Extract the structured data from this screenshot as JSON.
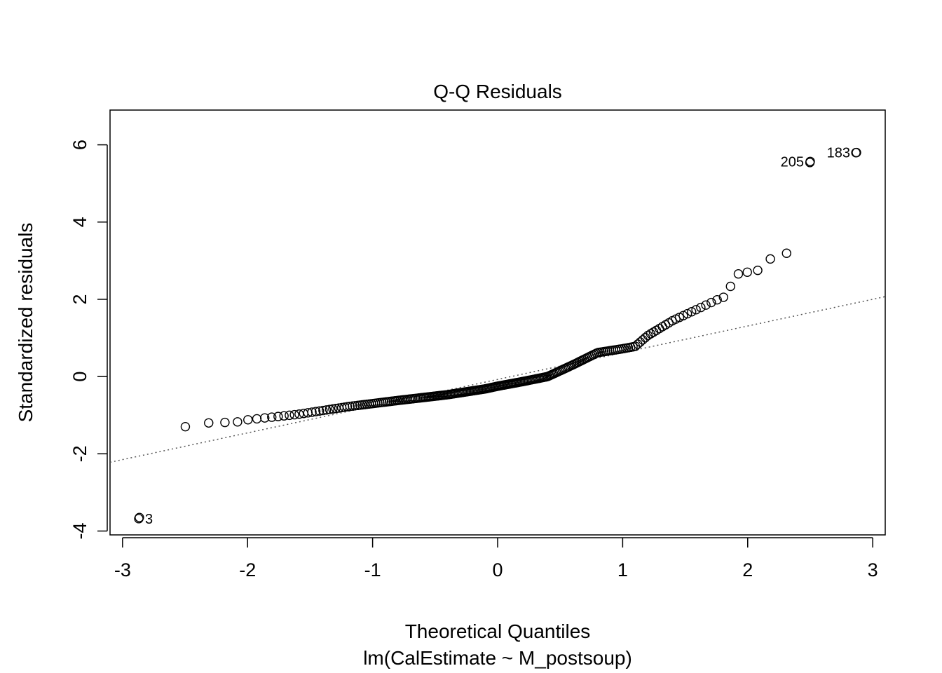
{
  "chart_data": {
    "type": "scatter",
    "title": "Q-Q Residuals",
    "xlabel": "Theoretical Quantiles",
    "sublabel": "lm(CalEstimate ~ M_postsoup)",
    "ylabel": "Standardized residuals",
    "xlim": [
      -3.1,
      3.1
    ],
    "ylim": [
      -4.1,
      6.9
    ],
    "x_ticks": [
      -3,
      -2,
      -1,
      0,
      1,
      2,
      3
    ],
    "y_ticks": [
      -4,
      -2,
      0,
      2,
      4,
      6
    ],
    "x_tick_labels": [
      "-3",
      "-2",
      "-1",
      "0",
      "1",
      "2",
      "3"
    ],
    "y_tick_labels": [
      "-4",
      "-2",
      "0",
      "2",
      "4",
      "6"
    ],
    "reference_line": {
      "points": [
        [
          -3.1,
          -2.22
        ],
        [
          3.1,
          2.07
        ]
      ],
      "style": "dotted"
    },
    "n_points": 240,
    "key_points": [
      [
        -2.87,
        -3.68
      ],
      [
        -2.5,
        -1.3
      ],
      [
        -2.31,
        -1.2
      ],
      [
        -2.2,
        -1.19
      ],
      [
        -2.09,
        -1.18
      ],
      [
        -2.0,
        -1.12
      ],
      [
        -1.6,
        -0.98
      ],
      [
        -1.2,
        -0.78
      ],
      [
        -0.8,
        -0.62
      ],
      [
        -0.4,
        -0.47
      ],
      [
        -0.1,
        -0.32
      ],
      [
        0.0,
        -0.25
      ],
      [
        0.2,
        -0.13
      ],
      [
        0.4,
        0.0
      ],
      [
        0.6,
        0.3
      ],
      [
        0.8,
        0.62
      ],
      [
        1.0,
        0.72
      ],
      [
        1.1,
        0.78
      ],
      [
        1.2,
        1.06
      ],
      [
        1.4,
        1.45
      ],
      [
        1.6,
        1.75
      ],
      [
        1.75,
        1.98
      ],
      [
        1.82,
        2.07
      ],
      [
        1.87,
        2.38
      ],
      [
        1.93,
        2.68
      ],
      [
        1.99,
        2.7
      ],
      [
        2.07,
        2.72
      ],
      [
        2.2,
        3.1
      ],
      [
        2.31,
        3.18
      ],
      [
        2.5,
        5.57
      ],
      [
        2.87,
        5.8
      ]
    ],
    "labeled_points": [
      {
        "label": "3",
        "x": -2.87,
        "y": -3.68,
        "pos": "right"
      },
      {
        "label": "205",
        "x": 2.5,
        "y": 5.57,
        "pos": "left"
      },
      {
        "label": "183",
        "x": 2.87,
        "y": 5.8,
        "pos": "left"
      }
    ],
    "grid": false,
    "legend": "none",
    "colors": {
      "points": "#000000",
      "line": "#555555",
      "frame": "#000000"
    }
  }
}
